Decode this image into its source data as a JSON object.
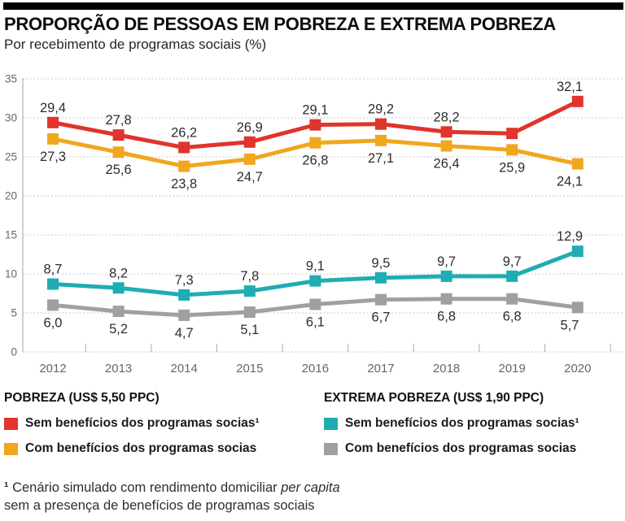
{
  "page": {
    "title": "PROPORÇÃO DE PESSOAS EM POBREZA E EXTREMA POBREZA",
    "subtitle": "Por recebimento de programas sociais (%)"
  },
  "chart_data": {
    "type": "line",
    "x": [
      "2012",
      "2013",
      "2014",
      "2015",
      "2016",
      "2017",
      "2018",
      "2019",
      "2020"
    ],
    "ylim": [
      0,
      35
    ],
    "yticks": [
      0,
      5,
      10,
      15,
      20,
      25,
      30,
      35
    ],
    "grid": "dotted-horizontal",
    "marker": "square",
    "series": [
      {
        "id": "pobreza-sem-beneficios",
        "name": "Sem benefícios dos programas socias¹",
        "group": "POBREZA (US$ 5,50 PPC)",
        "color": "#e0342c",
        "values": [
          29.4,
          27.8,
          26.2,
          26.9,
          29.1,
          29.2,
          28.2,
          28.0,
          32.1
        ],
        "labels": [
          "29,4",
          "27,8",
          "26,2",
          "26,9",
          "29,1",
          "29,2",
          "28,2",
          "",
          "32,1"
        ],
        "label_side": "above"
      },
      {
        "id": "pobreza-com-beneficios",
        "name": "Com benefícios dos programas socias",
        "group": "POBREZA (US$ 5,50 PPC)",
        "color": "#f0a71f",
        "values": [
          27.3,
          25.6,
          23.8,
          24.7,
          26.8,
          27.1,
          26.4,
          25.9,
          24.1
        ],
        "labels": [
          "27,3",
          "25,6",
          "23,8",
          "24,7",
          "26,8",
          "27,1",
          "26,4",
          "25,9",
          "24,1"
        ],
        "label_side": "below"
      },
      {
        "id": "extrema-sem-beneficios",
        "name": "Sem benefícios dos programas socias¹",
        "group": "EXTREMA POBREZA (US$ 1,90 PPC)",
        "color": "#1fadb3",
        "values": [
          8.7,
          8.2,
          7.3,
          7.8,
          9.1,
          9.5,
          9.7,
          9.7,
          12.9
        ],
        "labels": [
          "8,7",
          "8,2",
          "7,3",
          "7,8",
          "9,1",
          "9,5",
          "9,7",
          "9,7",
          "12,9"
        ],
        "label_side": "above"
      },
      {
        "id": "extrema-com-beneficios",
        "name": "Com benefícios dos programas socias",
        "group": "EXTREMA POBREZA (US$ 1,90 PPC)",
        "color": "#9fa0a2",
        "values": [
          6.0,
          5.2,
          4.7,
          5.1,
          6.1,
          6.7,
          6.8,
          6.8,
          5.7
        ],
        "labels": [
          "6,0",
          "5,2",
          "4,7",
          "5,1",
          "6,1",
          "6,7",
          "6,8",
          "6,8",
          "5,7"
        ],
        "label_side": "below"
      }
    ]
  },
  "legend": {
    "groups": [
      {
        "title": "POBREZA (US$ 5,50 PPC)",
        "items": [
          {
            "label": "Sem benefícios dos programas socias¹",
            "series": 0
          },
          {
            "label": "Com benefícios dos programas socias",
            "series": 1
          }
        ]
      },
      {
        "title": "EXTREMA POBREZA (US$ 1,90 PPC)",
        "items": [
          {
            "label": "Sem benefícios dos programas socias¹",
            "series": 2
          },
          {
            "label": "Com benefícios dos programas socias",
            "series": 3
          }
        ]
      }
    ]
  },
  "footnote": {
    "marker": "¹",
    "line1": " Cenário simulado com rendimento domiciliar ",
    "line1_italic": "per capita",
    "line2": "sem a presença de benefícios de programas sociais"
  }
}
